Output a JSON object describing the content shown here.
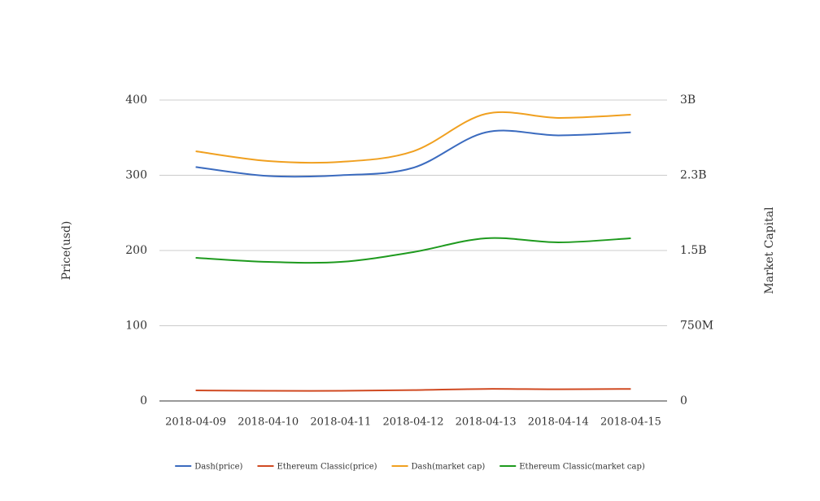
{
  "chart_data": {
    "type": "line",
    "categories": [
      "2018-04-09",
      "2018-04-10",
      "2018-04-11",
      "2018-04-12",
      "2018-04-13",
      "2018-04-14",
      "2018-04-15"
    ],
    "ylabel": "Price(usd)",
    "y2label": "Market Capital",
    "ylim": [
      0,
      400
    ],
    "yticks": [
      0,
      100,
      200,
      300,
      400
    ],
    "y2lim": [
      0,
      3000000000
    ],
    "y2ticks": [
      0,
      {
        "value": 750000000,
        "label": "750M"
      },
      {
        "value": 1500000000,
        "label": "1.5B"
      },
      {
        "value": 2250000000,
        "label": "2.3B"
      },
      {
        "value": 3000000000,
        "label": "3B"
      }
    ],
    "grid": true,
    "legend": "bottom",
    "series": [
      {
        "name": "Dash(price)",
        "color": "#3b6bbf",
        "values": [
          311,
          299,
          300,
          310,
          357,
          353,
          357
        ]
      },
      {
        "name": "Ethereum Classic(price)",
        "color": "#d04a22",
        "values": [
          14,
          13.5,
          13.5,
          14.5,
          16,
          15.5,
          16
        ]
      },
      {
        "name": "Dash(market cap)",
        "color": "#f0a020",
        "axis": "y2",
        "values": [
          2489000000,
          2392000000,
          2384000000,
          2489000000,
          2862000000,
          2822000000,
          2854000000
        ]
      },
      {
        "name": "Ethereum Classic(market cap)",
        "color": "#1e9a1e",
        "axis": "y2",
        "values": [
          1427000000,
          1386000000,
          1386000000,
          1484000000,
          1622000000,
          1581000000,
          1622000000
        ]
      }
    ]
  }
}
